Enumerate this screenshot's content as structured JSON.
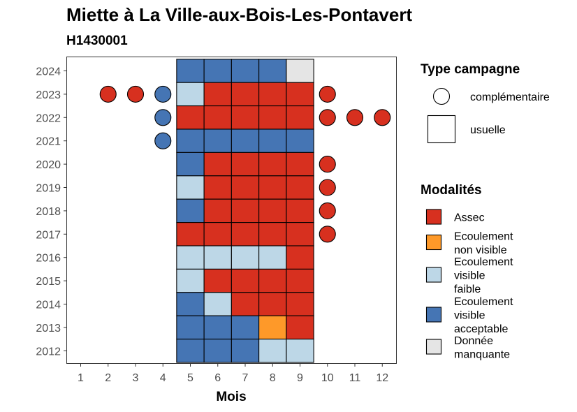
{
  "chart_data": {
    "type": "heatmap",
    "title": "Miette à La Ville-aux-Bois-Les-Pontavert",
    "subtitle": "H1430001",
    "xlabel": "Mois",
    "ylabel": "",
    "x_categories": [
      "1",
      "2",
      "3",
      "4",
      "5",
      "6",
      "7",
      "8",
      "9",
      "10",
      "11",
      "12"
    ],
    "y_categories": [
      "2024",
      "2023",
      "2022",
      "2021",
      "2020",
      "2019",
      "2018",
      "2017",
      "2016",
      "2015",
      "2014",
      "2013",
      "2012"
    ],
    "type_legend": {
      "title": "Type campagne",
      "entries": [
        {
          "key": "complementaire",
          "label": "complémentaire",
          "shape": "circle"
        },
        {
          "key": "usuelle",
          "label": "usuelle",
          "shape": "square"
        }
      ]
    },
    "modalites_legend": {
      "title": "Modalités",
      "entries": [
        {
          "key": "assec",
          "label_lines": [
            "Assec"
          ],
          "color": "#d7301f"
        },
        {
          "key": "ecoul_nv",
          "label_lines": [
            "Ecoulement",
            "non visible"
          ],
          "color": "#fe9929"
        },
        {
          "key": "ecoul_vf",
          "label_lines": [
            "Ecoulement",
            "visible",
            "faible"
          ],
          "color": "#bdd7e7"
        },
        {
          "key": "ecoul_va",
          "label_lines": [
            "Ecoulement",
            "visible",
            "acceptable"
          ],
          "color": "#4575b4"
        },
        {
          "key": "manquante",
          "label_lines": [
            "Donnée",
            "manquante"
          ],
          "color": "#e5e5e5"
        }
      ]
    },
    "observations": [
      {
        "year": "2024",
        "month": 5,
        "type": "usuelle",
        "modalite": "ecoul_va"
      },
      {
        "year": "2024",
        "month": 6,
        "type": "usuelle",
        "modalite": "ecoul_va"
      },
      {
        "year": "2024",
        "month": 7,
        "type": "usuelle",
        "modalite": "ecoul_va"
      },
      {
        "year": "2024",
        "month": 8,
        "type": "usuelle",
        "modalite": "ecoul_va"
      },
      {
        "year": "2024",
        "month": 9,
        "type": "usuelle",
        "modalite": "manquante"
      },
      {
        "year": "2023",
        "month": 2,
        "type": "complementaire",
        "modalite": "assec"
      },
      {
        "year": "2023",
        "month": 3,
        "type": "complementaire",
        "modalite": "assec"
      },
      {
        "year": "2023",
        "month": 4,
        "type": "complementaire",
        "modalite": "ecoul_va"
      },
      {
        "year": "2023",
        "month": 5,
        "type": "usuelle",
        "modalite": "ecoul_vf"
      },
      {
        "year": "2023",
        "month": 6,
        "type": "usuelle",
        "modalite": "assec"
      },
      {
        "year": "2023",
        "month": 7,
        "type": "usuelle",
        "modalite": "assec"
      },
      {
        "year": "2023",
        "month": 8,
        "type": "usuelle",
        "modalite": "assec"
      },
      {
        "year": "2023",
        "month": 9,
        "type": "usuelle",
        "modalite": "assec"
      },
      {
        "year": "2023",
        "month": 10,
        "type": "complementaire",
        "modalite": "assec"
      },
      {
        "year": "2022",
        "month": 4,
        "type": "complementaire",
        "modalite": "ecoul_va"
      },
      {
        "year": "2022",
        "month": 5,
        "type": "usuelle",
        "modalite": "assec"
      },
      {
        "year": "2022",
        "month": 6,
        "type": "usuelle",
        "modalite": "assec"
      },
      {
        "year": "2022",
        "month": 7,
        "type": "usuelle",
        "modalite": "assec"
      },
      {
        "year": "2022",
        "month": 8,
        "type": "usuelle",
        "modalite": "assec"
      },
      {
        "year": "2022",
        "month": 9,
        "type": "usuelle",
        "modalite": "assec"
      },
      {
        "year": "2022",
        "month": 10,
        "type": "complementaire",
        "modalite": "assec"
      },
      {
        "year": "2022",
        "month": 11,
        "type": "complementaire",
        "modalite": "assec"
      },
      {
        "year": "2022",
        "month": 12,
        "type": "complementaire",
        "modalite": "assec"
      },
      {
        "year": "2021",
        "month": 4,
        "type": "complementaire",
        "modalite": "ecoul_va"
      },
      {
        "year": "2021",
        "month": 5,
        "type": "usuelle",
        "modalite": "ecoul_va"
      },
      {
        "year": "2021",
        "month": 6,
        "type": "usuelle",
        "modalite": "ecoul_va"
      },
      {
        "year": "2021",
        "month": 7,
        "type": "usuelle",
        "modalite": "ecoul_va"
      },
      {
        "year": "2021",
        "month": 8,
        "type": "usuelle",
        "modalite": "ecoul_va"
      },
      {
        "year": "2021",
        "month": 9,
        "type": "usuelle",
        "modalite": "ecoul_va"
      },
      {
        "year": "2020",
        "month": 5,
        "type": "usuelle",
        "modalite": "ecoul_va"
      },
      {
        "year": "2020",
        "month": 6,
        "type": "usuelle",
        "modalite": "assec"
      },
      {
        "year": "2020",
        "month": 7,
        "type": "usuelle",
        "modalite": "assec"
      },
      {
        "year": "2020",
        "month": 8,
        "type": "usuelle",
        "modalite": "assec"
      },
      {
        "year": "2020",
        "month": 9,
        "type": "usuelle",
        "modalite": "assec"
      },
      {
        "year": "2020",
        "month": 10,
        "type": "complementaire",
        "modalite": "assec"
      },
      {
        "year": "2019",
        "month": 5,
        "type": "usuelle",
        "modalite": "ecoul_vf"
      },
      {
        "year": "2019",
        "month": 6,
        "type": "usuelle",
        "modalite": "assec"
      },
      {
        "year": "2019",
        "month": 7,
        "type": "usuelle",
        "modalite": "assec"
      },
      {
        "year": "2019",
        "month": 8,
        "type": "usuelle",
        "modalite": "assec"
      },
      {
        "year": "2019",
        "month": 9,
        "type": "usuelle",
        "modalite": "assec"
      },
      {
        "year": "2019",
        "month": 10,
        "type": "complementaire",
        "modalite": "assec"
      },
      {
        "year": "2018",
        "month": 5,
        "type": "usuelle",
        "modalite": "ecoul_va"
      },
      {
        "year": "2018",
        "month": 6,
        "type": "usuelle",
        "modalite": "assec"
      },
      {
        "year": "2018",
        "month": 7,
        "type": "usuelle",
        "modalite": "assec"
      },
      {
        "year": "2018",
        "month": 8,
        "type": "usuelle",
        "modalite": "assec"
      },
      {
        "year": "2018",
        "month": 9,
        "type": "usuelle",
        "modalite": "assec"
      },
      {
        "year": "2018",
        "month": 10,
        "type": "complementaire",
        "modalite": "assec"
      },
      {
        "year": "2017",
        "month": 5,
        "type": "usuelle",
        "modalite": "assec"
      },
      {
        "year": "2017",
        "month": 6,
        "type": "usuelle",
        "modalite": "assec"
      },
      {
        "year": "2017",
        "month": 7,
        "type": "usuelle",
        "modalite": "assec"
      },
      {
        "year": "2017",
        "month": 8,
        "type": "usuelle",
        "modalite": "assec"
      },
      {
        "year": "2017",
        "month": 9,
        "type": "usuelle",
        "modalite": "assec"
      },
      {
        "year": "2017",
        "month": 10,
        "type": "complementaire",
        "modalite": "assec"
      },
      {
        "year": "2016",
        "month": 5,
        "type": "usuelle",
        "modalite": "ecoul_vf"
      },
      {
        "year": "2016",
        "month": 6,
        "type": "usuelle",
        "modalite": "ecoul_vf"
      },
      {
        "year": "2016",
        "month": 7,
        "type": "usuelle",
        "modalite": "ecoul_vf"
      },
      {
        "year": "2016",
        "month": 8,
        "type": "usuelle",
        "modalite": "ecoul_vf"
      },
      {
        "year": "2016",
        "month": 9,
        "type": "usuelle",
        "modalite": "assec"
      },
      {
        "year": "2015",
        "month": 5,
        "type": "usuelle",
        "modalite": "ecoul_vf"
      },
      {
        "year": "2015",
        "month": 6,
        "type": "usuelle",
        "modalite": "assec"
      },
      {
        "year": "2015",
        "month": 7,
        "type": "usuelle",
        "modalite": "assec"
      },
      {
        "year": "2015",
        "month": 8,
        "type": "usuelle",
        "modalite": "assec"
      },
      {
        "year": "2015",
        "month": 9,
        "type": "usuelle",
        "modalite": "assec"
      },
      {
        "year": "2014",
        "month": 5,
        "type": "usuelle",
        "modalite": "ecoul_va"
      },
      {
        "year": "2014",
        "month": 6,
        "type": "usuelle",
        "modalite": "ecoul_vf"
      },
      {
        "year": "2014",
        "month": 7,
        "type": "usuelle",
        "modalite": "assec"
      },
      {
        "year": "2014",
        "month": 8,
        "type": "usuelle",
        "modalite": "assec"
      },
      {
        "year": "2014",
        "month": 9,
        "type": "usuelle",
        "modalite": "assec"
      },
      {
        "year": "2013",
        "month": 5,
        "type": "usuelle",
        "modalite": "ecoul_va"
      },
      {
        "year": "2013",
        "month": 6,
        "type": "usuelle",
        "modalite": "ecoul_va"
      },
      {
        "year": "2013",
        "month": 7,
        "type": "usuelle",
        "modalite": "ecoul_va"
      },
      {
        "year": "2013",
        "month": 8,
        "type": "usuelle",
        "modalite": "ecoul_nv"
      },
      {
        "year": "2013",
        "month": 9,
        "type": "usuelle",
        "modalite": "assec"
      },
      {
        "year": "2012",
        "month": 5,
        "type": "usuelle",
        "modalite": "ecoul_va"
      },
      {
        "year": "2012",
        "month": 6,
        "type": "usuelle",
        "modalite": "ecoul_va"
      },
      {
        "year": "2012",
        "month": 7,
        "type": "usuelle",
        "modalite": "ecoul_va"
      },
      {
        "year": "2012",
        "month": 8,
        "type": "usuelle",
        "modalite": "ecoul_vf"
      },
      {
        "year": "2012",
        "month": 9,
        "type": "usuelle",
        "modalite": "ecoul_vf"
      }
    ]
  }
}
